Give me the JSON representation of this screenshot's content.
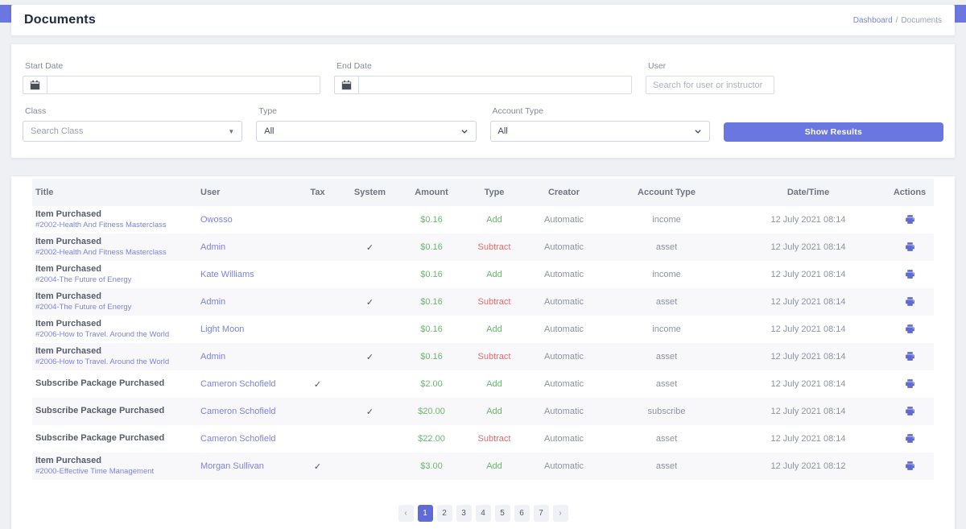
{
  "header": {
    "title": "Documents",
    "breadcrumb": {
      "link": "Dashboard",
      "separator": "/",
      "current": "Documents"
    }
  },
  "filters": {
    "start_date": {
      "label": "Start Date",
      "value": ""
    },
    "end_date": {
      "label": "End Date",
      "value": ""
    },
    "user": {
      "label": "User",
      "placeholder": "Search for user or instructor",
      "value": ""
    },
    "class": {
      "label": "Class",
      "placeholder": "Search Class"
    },
    "type": {
      "label": "Type",
      "value": "All"
    },
    "account_type": {
      "label": "Account Type",
      "value": "All"
    },
    "show_results_label": "Show Results"
  },
  "table": {
    "columns": [
      "Title",
      "User",
      "Tax",
      "System",
      "Amount",
      "Type",
      "Creator",
      "Account Type",
      "Date/Time",
      "Actions"
    ],
    "rows": [
      {
        "title": "Item Purchased",
        "subtitle": "#2002-Health And Fitness Masterclass",
        "user": "Owosso",
        "tax": false,
        "system": false,
        "amount": "$0.16",
        "type": "Add",
        "creator": "Automatic",
        "account_type": "income",
        "datetime": "12 July 2021 08:14"
      },
      {
        "title": "Item Purchased",
        "subtitle": "#2002-Health And Fitness Masterclass",
        "user": "Admin",
        "tax": false,
        "system": true,
        "amount": "$0.16",
        "type": "Subtract",
        "creator": "Automatic",
        "account_type": "asset",
        "datetime": "12 July 2021 08:14"
      },
      {
        "title": "Item Purchased",
        "subtitle": "#2004-The Future of Energy",
        "user": "Kate Williams",
        "tax": false,
        "system": false,
        "amount": "$0.16",
        "type": "Add",
        "creator": "Automatic",
        "account_type": "income",
        "datetime": "12 July 2021 08:14"
      },
      {
        "title": "Item Purchased",
        "subtitle": "#2004-The Future of Energy",
        "user": "Admin",
        "tax": false,
        "system": true,
        "amount": "$0.16",
        "type": "Subtract",
        "creator": "Automatic",
        "account_type": "asset",
        "datetime": "12 July 2021 08:14"
      },
      {
        "title": "Item Purchased",
        "subtitle": "#2006-How to Travel. Around the World",
        "user": "Light Moon",
        "tax": false,
        "system": false,
        "amount": "$0.16",
        "type": "Add",
        "creator": "Automatic",
        "account_type": "income",
        "datetime": "12 July 2021 08:14"
      },
      {
        "title": "Item Purchased",
        "subtitle": "#2006-How to Travel. Around the World",
        "user": "Admin",
        "tax": false,
        "system": true,
        "amount": "$0.16",
        "type": "Subtract",
        "creator": "Automatic",
        "account_type": "asset",
        "datetime": "12 July 2021 08:14"
      },
      {
        "title": "Subscribe Package Purchased",
        "subtitle": "",
        "user": "Cameron Schofield",
        "tax": true,
        "system": false,
        "amount": "$2.00",
        "type": "Add",
        "creator": "Automatic",
        "account_type": "asset",
        "datetime": "12 July 2021 08:14"
      },
      {
        "title": "Subscribe Package Purchased",
        "subtitle": "",
        "user": "Cameron Schofield",
        "tax": false,
        "system": true,
        "amount": "$20.00",
        "type": "Add",
        "creator": "Automatic",
        "account_type": "subscribe",
        "datetime": "12 July 2021 08:14"
      },
      {
        "title": "Subscribe Package Purchased",
        "subtitle": "",
        "user": "Cameron Schofield",
        "tax": false,
        "system": false,
        "amount": "$22.00",
        "type": "Subtract",
        "creator": "Automatic",
        "account_type": "asset",
        "datetime": "12 July 2021 08:14"
      },
      {
        "title": "Item Purchased",
        "subtitle": "#2000-Effective Time Management",
        "user": "Morgan Sullivan",
        "tax": true,
        "system": false,
        "amount": "$3.00",
        "type": "Add",
        "creator": "Automatic",
        "account_type": "asset",
        "datetime": "12 July 2021 08:12"
      }
    ]
  },
  "pagination": {
    "prev": "‹",
    "pages": [
      "1",
      "2",
      "3",
      "4",
      "5",
      "6",
      "7"
    ],
    "active": "1",
    "next": "›"
  },
  "icons": {
    "calendar": "calendar-icon",
    "chevron_down": "chevron-down-icon",
    "caret_down": "caret-down-icon",
    "check": "✓",
    "print": "print-icon"
  },
  "colors": {
    "accent": "#6b77e1",
    "link": "#7b83dd",
    "positive": "#69b96d",
    "negative": "#e06c6c",
    "background": "#eef0f4"
  }
}
